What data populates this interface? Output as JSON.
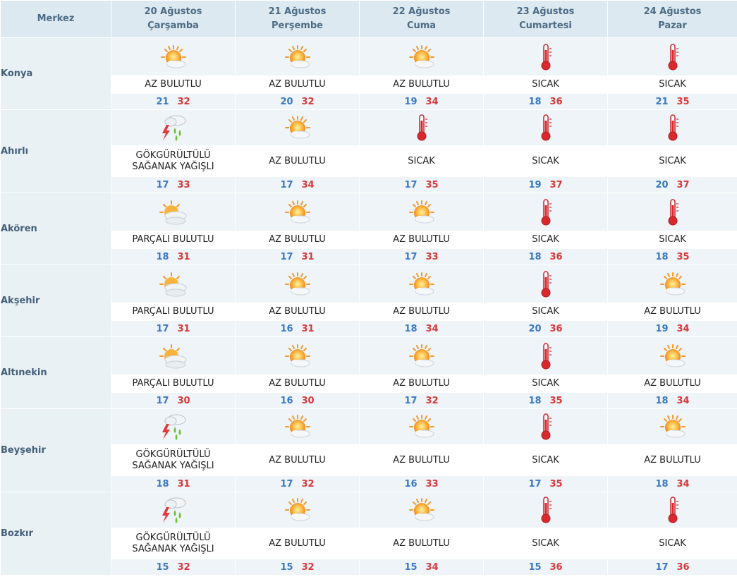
{
  "header": {
    "corner": "Merkez",
    "days": [
      {
        "date": "20 Ağustos",
        "weekday": "Çarşamba"
      },
      {
        "date": "21 Ağustos",
        "weekday": "Perşembe"
      },
      {
        "date": "22 Ağustos",
        "weekday": "Cuma"
      },
      {
        "date": "23 Ağustos",
        "weekday": "Cumartesi"
      },
      {
        "date": "24 Ağustos",
        "weekday": "Pazar"
      }
    ]
  },
  "rows": [
    {
      "city": "Konya",
      "days": [
        {
          "icon": "sun-cloud-icon",
          "desc": "AZ BULUTLU",
          "min": "21",
          "max": "32"
        },
        {
          "icon": "sun-cloud-icon",
          "desc": "AZ BULUTLU",
          "min": "20",
          "max": "32"
        },
        {
          "icon": "sun-cloud-icon",
          "desc": "AZ BULUTLU",
          "min": "19",
          "max": "34"
        },
        {
          "icon": "thermometer-icon",
          "desc": "SICAK",
          "min": "18",
          "max": "36"
        },
        {
          "icon": "thermometer-icon",
          "desc": "SICAK",
          "min": "21",
          "max": "35"
        }
      ]
    },
    {
      "city": "Ahırlı",
      "days": [
        {
          "icon": "thunder-rain-icon",
          "desc": "GÖKGÜRÜLTÜLÜ SAĞANAK YAĞIŞLI",
          "min": "17",
          "max": "33"
        },
        {
          "icon": "sun-cloud-icon",
          "desc": "AZ BULUTLU",
          "min": "17",
          "max": "34"
        },
        {
          "icon": "thermometer-icon",
          "desc": "SICAK",
          "min": "17",
          "max": "35"
        },
        {
          "icon": "thermometer-icon",
          "desc": "SICAK",
          "min": "19",
          "max": "37"
        },
        {
          "icon": "thermometer-icon",
          "desc": "SICAK",
          "min": "20",
          "max": "37"
        }
      ]
    },
    {
      "city": "Akören",
      "days": [
        {
          "icon": "partly-cloudy-icon",
          "desc": "PARÇALI BULUTLU",
          "min": "18",
          "max": "31"
        },
        {
          "icon": "sun-cloud-icon",
          "desc": "AZ BULUTLU",
          "min": "17",
          "max": "31"
        },
        {
          "icon": "sun-cloud-icon",
          "desc": "AZ BULUTLU",
          "min": "17",
          "max": "33"
        },
        {
          "icon": "thermometer-icon",
          "desc": "SICAK",
          "min": "18",
          "max": "36"
        },
        {
          "icon": "thermometer-icon",
          "desc": "SICAK",
          "min": "18",
          "max": "35"
        }
      ]
    },
    {
      "city": "Akşehir",
      "days": [
        {
          "icon": "partly-cloudy-icon",
          "desc": "PARÇALI BULUTLU",
          "min": "17",
          "max": "31"
        },
        {
          "icon": "sun-cloud-icon",
          "desc": "AZ BULUTLU",
          "min": "16",
          "max": "31"
        },
        {
          "icon": "sun-cloud-icon",
          "desc": "AZ BULUTLU",
          "min": "18",
          "max": "34"
        },
        {
          "icon": "thermometer-icon",
          "desc": "SICAK",
          "min": "20",
          "max": "36"
        },
        {
          "icon": "sun-cloud-icon",
          "desc": "AZ BULUTLU",
          "min": "19",
          "max": "34"
        }
      ]
    },
    {
      "city": "Altınekin",
      "days": [
        {
          "icon": "partly-cloudy-icon",
          "desc": "PARÇALI BULUTLU",
          "min": "17",
          "max": "30"
        },
        {
          "icon": "sun-cloud-icon",
          "desc": "AZ BULUTLU",
          "min": "16",
          "max": "30"
        },
        {
          "icon": "sun-cloud-icon",
          "desc": "AZ BULUTLU",
          "min": "17",
          "max": "32"
        },
        {
          "icon": "thermometer-icon",
          "desc": "SICAK",
          "min": "18",
          "max": "35"
        },
        {
          "icon": "sun-cloud-icon",
          "desc": "AZ BULUTLU",
          "min": "18",
          "max": "34"
        }
      ]
    },
    {
      "city": "Beyşehir",
      "days": [
        {
          "icon": "thunder-rain-icon",
          "desc": "GÖKGÜRÜLTÜLÜ SAĞANAK YAĞIŞLI",
          "min": "18",
          "max": "31"
        },
        {
          "icon": "sun-cloud-icon",
          "desc": "AZ BULUTLU",
          "min": "17",
          "max": "32"
        },
        {
          "icon": "sun-cloud-icon",
          "desc": "AZ BULUTLU",
          "min": "16",
          "max": "33"
        },
        {
          "icon": "thermometer-icon",
          "desc": "SICAK",
          "min": "17",
          "max": "35"
        },
        {
          "icon": "sun-cloud-icon",
          "desc": "AZ BULUTLU",
          "min": "18",
          "max": "34"
        }
      ]
    },
    {
      "city": "Bozkır",
      "days": [
        {
          "icon": "thunder-rain-icon",
          "desc": "GÖKGÜRÜLTÜLÜ SAĞANAK YAĞIŞLI",
          "min": "15",
          "max": "32"
        },
        {
          "icon": "sun-cloud-icon",
          "desc": "AZ BULUTLU",
          "min": "15",
          "max": "32"
        },
        {
          "icon": "sun-cloud-icon",
          "desc": "AZ BULUTLU",
          "min": "15",
          "max": "34"
        },
        {
          "icon": "thermometer-icon",
          "desc": "SICAK",
          "min": "15",
          "max": "36"
        },
        {
          "icon": "thermometer-icon",
          "desc": "SICAK",
          "min": "17",
          "max": "36"
        }
      ]
    }
  ],
  "colors": {
    "header_bg": "#dce9f1",
    "header_text": "#4c6b84",
    "min_temp": "#3b78c4",
    "max_temp": "#d9383a"
  }
}
